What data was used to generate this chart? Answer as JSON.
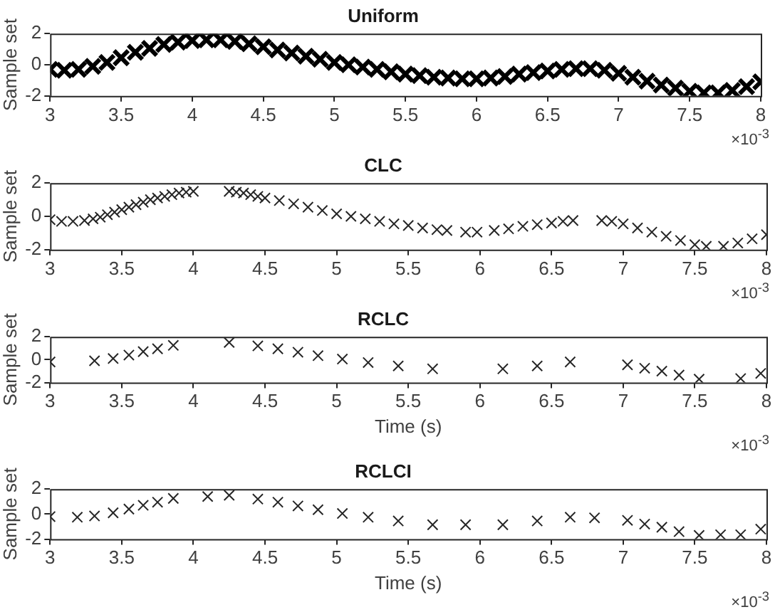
{
  "chart_data": [
    {
      "type": "scatter",
      "title": "Uniform",
      "ylabel": "Sample set",
      "color": "#000000",
      "marker": "cross",
      "grid": false,
      "xlim": [
        3,
        8
      ],
      "xticks": [
        3,
        3.5,
        4,
        4.5,
        5,
        5.5,
        6,
        6.5,
        7,
        7.5,
        8
      ],
      "ylim": [
        -2,
        2
      ],
      "yticks": [
        -2,
        0,
        2
      ],
      "annotations": [
        "×10$^{-3}$"
      ],
      "x": [
        3.0,
        3.1,
        3.2,
        3.3,
        3.4,
        3.5,
        3.6,
        3.7,
        3.8,
        3.9,
        4.0,
        4.1,
        4.2,
        4.3,
        4.4,
        4.5,
        4.6,
        4.7,
        4.8,
        4.9,
        5.0,
        5.1,
        5.2,
        5.3,
        5.4,
        5.5,
        5.6,
        5.7,
        5.8,
        5.9,
        6.0,
        6.1,
        6.2,
        6.3,
        6.4,
        6.5,
        6.6,
        6.7,
        6.8,
        6.9,
        7.0,
        7.1,
        7.2,
        7.3,
        7.4,
        7.5,
        7.6,
        7.7,
        7.8,
        7.9,
        8.0
      ],
      "values": [
        -0.3,
        -0.35,
        -0.3,
        -0.1,
        0.15,
        0.45,
        0.8,
        1.05,
        1.3,
        1.45,
        1.55,
        1.6,
        1.6,
        1.5,
        1.35,
        1.15,
        0.95,
        0.75,
        0.55,
        0.35,
        0.15,
        0,
        -0.15,
        -0.3,
        -0.45,
        -0.6,
        -0.7,
        -0.8,
        -0.85,
        -0.9,
        -0.9,
        -0.85,
        -0.75,
        -0.6,
        -0.5,
        -0.4,
        -0.3,
        -0.25,
        -0.25,
        -0.35,
        -0.55,
        -0.8,
        -1.05,
        -1.3,
        -1.5,
        -1.7,
        -1.8,
        -1.8,
        -1.65,
        -1.4,
        -1.1
      ]
    },
    {
      "type": "scatter",
      "title": "CLC",
      "ylabel": "Sample set",
      "color": "#262626",
      "marker": "cross",
      "grid": false,
      "xlim": [
        3,
        8
      ],
      "xticks": [
        3,
        3.5,
        4,
        4.5,
        5,
        5.5,
        6,
        6.5,
        7,
        7.5,
        8
      ],
      "ylim": [
        -2,
        2
      ],
      "yticks": [
        -2,
        0,
        2
      ],
      "annotations": [
        "×10$^{-3}$"
      ],
      "x": [
        3.0,
        3.08,
        3.16,
        3.24,
        3.3,
        3.35,
        3.4,
        3.45,
        3.5,
        3.55,
        3.6,
        3.65,
        3.7,
        3.75,
        3.8,
        3.85,
        3.9,
        3.95,
        4.0,
        4.25,
        4.3,
        4.35,
        4.4,
        4.45,
        4.5,
        4.6,
        4.7,
        4.8,
        4.9,
        5.0,
        5.1,
        5.2,
        5.3,
        5.4,
        5.5,
        5.6,
        5.7,
        5.77,
        5.9,
        5.98,
        6.1,
        6.2,
        6.3,
        6.4,
        6.5,
        6.58,
        6.65,
        6.85,
        6.92,
        7.0,
        7.1,
        7.2,
        7.3,
        7.4,
        7.5,
        7.58,
        7.7,
        7.8,
        7.9,
        8.0
      ],
      "values": [
        -0.2,
        -0.3,
        -0.3,
        -0.25,
        -0.15,
        -0.05,
        0.1,
        0.25,
        0.4,
        0.55,
        0.7,
        0.85,
        1.0,
        1.1,
        1.2,
        1.3,
        1.4,
        1.45,
        1.5,
        1.5,
        1.45,
        1.4,
        1.3,
        1.2,
        1.1,
        0.95,
        0.75,
        0.55,
        0.35,
        0.15,
        0,
        -0.15,
        -0.3,
        -0.45,
        -0.55,
        -0.7,
        -0.8,
        -0.85,
        -0.95,
        -0.95,
        -0.85,
        -0.75,
        -0.6,
        -0.5,
        -0.4,
        -0.3,
        -0.25,
        -0.25,
        -0.3,
        -0.45,
        -0.7,
        -0.95,
        -1.2,
        -1.45,
        -1.7,
        -1.8,
        -1.8,
        -1.6,
        -1.35,
        -1.1
      ]
    },
    {
      "type": "scatter",
      "title": "RCLC",
      "xlabel": "Time (s)",
      "ylabel": "Sample set",
      "color": "#262626",
      "marker": "cross",
      "grid": false,
      "xlim": [
        3,
        8
      ],
      "xticks": [
        3,
        3.5,
        4,
        4.5,
        5,
        5.5,
        6,
        6.5,
        7,
        7.5,
        8
      ],
      "ylim": [
        -2,
        2
      ],
      "yticks": [
        -2,
        0,
        2
      ],
      "annotations": [
        "×10$^{-3}$"
      ],
      "x": [
        3.0,
        3.31,
        3.44,
        3.55,
        3.65,
        3.75,
        3.86,
        4.25,
        4.45,
        4.59,
        4.73,
        4.87,
        5.04,
        5.22,
        5.43,
        5.67,
        6.16,
        6.4,
        6.63,
        7.03,
        7.15,
        7.27,
        7.39,
        7.53,
        7.82,
        7.96
      ],
      "values": [
        -0.2,
        -0.1,
        0.1,
        0.4,
        0.7,
        0.95,
        1.25,
        1.5,
        1.2,
        0.95,
        0.65,
        0.35,
        0.05,
        -0.25,
        -0.55,
        -0.8,
        -0.8,
        -0.55,
        -0.2,
        -0.45,
        -0.75,
        -1.0,
        -1.35,
        -1.7,
        -1.65,
        -1.2
      ]
    },
    {
      "type": "scatter",
      "title": "RCLCI",
      "xlabel": "Time (s)",
      "ylabel": "Sample set",
      "color": "#262626",
      "marker": "cross",
      "grid": false,
      "xlim": [
        3,
        8
      ],
      "xticks": [
        3,
        3.5,
        4,
        4.5,
        5,
        5.5,
        6,
        6.5,
        7,
        7.5,
        8
      ],
      "ylim": [
        -2,
        2
      ],
      "yticks": [
        -2,
        0,
        2
      ],
      "annotations": [
        "×10$^{-3}$"
      ],
      "x": [
        3.0,
        3.19,
        3.31,
        3.44,
        3.55,
        3.65,
        3.75,
        3.86,
        4.1,
        4.25,
        4.45,
        4.59,
        4.73,
        4.87,
        5.04,
        5.22,
        5.43,
        5.67,
        5.9,
        6.16,
        6.4,
        6.63,
        6.8,
        7.03,
        7.15,
        7.27,
        7.39,
        7.53,
        7.68,
        7.82,
        7.96
      ],
      "values": [
        -0.2,
        -0.25,
        -0.15,
        0.1,
        0.4,
        0.7,
        0.95,
        1.25,
        1.4,
        1.5,
        1.2,
        0.95,
        0.65,
        0.35,
        0.05,
        -0.25,
        -0.55,
        -0.85,
        -0.85,
        -0.85,
        -0.55,
        -0.25,
        -0.3,
        -0.5,
        -0.8,
        -1.05,
        -1.4,
        -1.7,
        -1.65,
        -1.65,
        -1.2
      ]
    }
  ]
}
